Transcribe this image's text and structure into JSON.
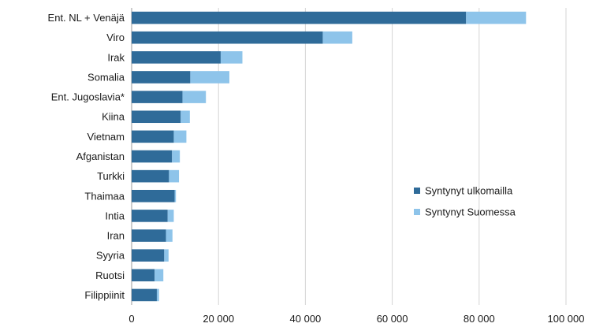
{
  "chart_data": {
    "type": "bar",
    "orientation": "horizontal",
    "stacked": true,
    "categories": [
      "Ent. NL + Venäjä",
      "Viro",
      "Irak",
      "Somalia",
      "Ent. Jugoslavia*",
      "Kiina",
      "Vietnam",
      "Afganistan",
      "Turkki",
      "Thaimaa",
      "Intia",
      "Iran",
      "Syyria",
      "Ruotsi",
      "Filippiinit"
    ],
    "series": [
      {
        "name": "Syntynyt ulkomailla",
        "color": "#2f6b99",
        "values": [
          77000,
          44000,
          20500,
          13500,
          11700,
          11300,
          9700,
          9300,
          8600,
          9900,
          8300,
          7900,
          7500,
          5300,
          5800
        ]
      },
      {
        "name": "Syntynyt Suomessa",
        "color": "#8ec4ea",
        "values": [
          13800,
          6800,
          5000,
          9000,
          5400,
          2100,
          2900,
          1800,
          2300,
          300,
          1400,
          1500,
          1000,
          2000,
          500
        ]
      }
    ],
    "xlim": [
      0,
      100000
    ],
    "xticks": [
      0,
      20000,
      40000,
      60000,
      80000,
      100000
    ],
    "xtick_labels": [
      "0",
      "20 000",
      "40 000",
      "60 000",
      "80 000",
      "100 000"
    ],
    "grid": "vertical",
    "legend_position": "right-middle",
    "title": "",
    "xlabel": "",
    "ylabel": ""
  }
}
